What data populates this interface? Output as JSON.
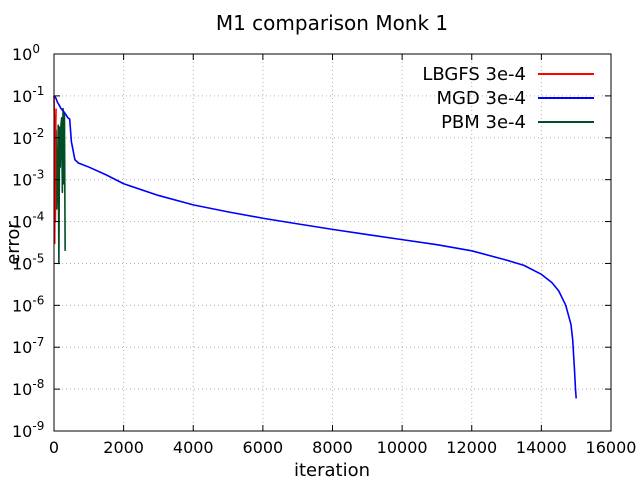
{
  "chart_data": {
    "type": "line",
    "title": "M1 comparison Monk 1",
    "xlabel": "iteration",
    "ylabel": "error",
    "xlim": [
      0,
      16000
    ],
    "ylim": [
      1e-09,
      1
    ],
    "yscale": "log",
    "grid": true,
    "legend_position": "top-right",
    "x_ticks": [
      {
        "value": 0,
        "label": "0"
      },
      {
        "value": 2000,
        "label": "2000"
      },
      {
        "value": 4000,
        "label": "4000"
      },
      {
        "value": 6000,
        "label": "6000"
      },
      {
        "value": 8000,
        "label": "8000"
      },
      {
        "value": 10000,
        "label": "10000"
      },
      {
        "value": 12000,
        "label": "12000"
      },
      {
        "value": 14000,
        "label": "14000"
      },
      {
        "value": 16000,
        "label": "16000"
      }
    ],
    "y_ticks": [
      {
        "value": 1,
        "base": "10",
        "exp": "0"
      },
      {
        "value": 0.1,
        "base": "10",
        "exp": "-1"
      },
      {
        "value": 0.01,
        "base": "10",
        "exp": "-2"
      },
      {
        "value": 0.001,
        "base": "10",
        "exp": "-3"
      },
      {
        "value": 0.0001,
        "base": "10",
        "exp": "-4"
      },
      {
        "value": 1e-05,
        "base": "10",
        "exp": "-5"
      },
      {
        "value": 1e-06,
        "base": "10",
        "exp": "-6"
      },
      {
        "value": 1e-07,
        "base": "10",
        "exp": "-7"
      },
      {
        "value": 1e-08,
        "base": "10",
        "exp": "-8"
      },
      {
        "value": 1e-09,
        "base": "10",
        "exp": "-9"
      }
    ],
    "series": [
      {
        "name": "LBGFS 3e-4",
        "color": "#ff0000",
        "x": [
          0,
          10,
          20,
          30,
          40,
          50,
          60
        ],
        "y": [
          0.1,
          0.03,
          3e-05,
          0.002,
          0.0001,
          0.02,
          0.05
        ]
      },
      {
        "name": "MGD 3e-4",
        "color": "#0000ff",
        "x": [
          0,
          50,
          100,
          150,
          200,
          250,
          300,
          350,
          400,
          450,
          500,
          600,
          700,
          1000,
          1500,
          2000,
          3000,
          4000,
          5000,
          6000,
          7000,
          8000,
          9000,
          10000,
          11000,
          12000,
          13000,
          13500,
          14000,
          14300,
          14500,
          14700,
          14850,
          14900,
          14950,
          14980,
          15000
        ],
        "y": [
          0.1,
          0.09,
          0.07,
          0.06,
          0.05,
          0.045,
          0.04,
          0.035,
          0.03,
          0.028,
          0.008,
          0.003,
          0.0025,
          0.002,
          0.0013,
          0.0008,
          0.00042,
          0.00025,
          0.00017,
          0.00012,
          8.8e-05,
          6.5e-05,
          4.9e-05,
          3.7e-05,
          2.8e-05,
          2e-05,
          1.2e-05,
          9e-06,
          5.5e-06,
          3.5e-06,
          2.2e-06,
          1e-06,
          3.5e-07,
          1.5e-07,
          3e-08,
          1e-08,
          6e-09
        ]
      },
      {
        "name": "PBM 3e-4",
        "color": "#004d26",
        "x": [
          20,
          40,
          60,
          80,
          100,
          120,
          140,
          160,
          180,
          200,
          220,
          240,
          260,
          280,
          300,
          320
        ],
        "y": [
          0.01,
          0.0003,
          0.015,
          0.0002,
          0.001,
          0.02,
          1e-05,
          0.018,
          0.002,
          0.02,
          0.03,
          0.0005,
          0.05,
          0.0008,
          0.04,
          2e-05
        ]
      }
    ]
  }
}
